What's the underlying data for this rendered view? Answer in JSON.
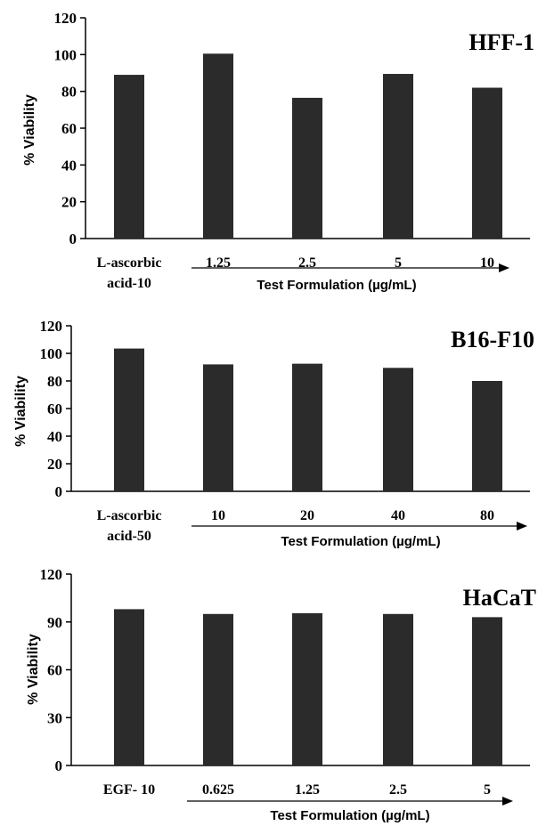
{
  "chart_data": [
    {
      "type": "bar",
      "panel_label": "HFF-1",
      "categories": [
        "L-ascorbic acid-10",
        "1.25",
        "2.5",
        "5",
        "10"
      ],
      "values": [
        89,
        100.5,
        76.5,
        89.5,
        82
      ],
      "ylabel": "% Viability",
      "xlabel": "Test Formulation (µg/mL)",
      "ylim": [
        0,
        120
      ],
      "yticks": [
        0,
        20,
        40,
        60,
        80,
        100,
        120
      ],
      "bar_color": "#2b2b2b",
      "grid": false
    },
    {
      "type": "bar",
      "panel_label": "B16-F10",
      "categories": [
        "L-ascorbic acid-50",
        "10",
        "20",
        "40",
        "80"
      ],
      "values": [
        103.5,
        92,
        92.5,
        89.5,
        80
      ],
      "ylabel": "% Viability",
      "xlabel": "Test Formulation (µg/mL)",
      "ylim": [
        0,
        120
      ],
      "yticks": [
        0,
        20,
        40,
        60,
        80,
        100,
        120
      ],
      "bar_color": "#2b2b2b",
      "grid": false
    },
    {
      "type": "bar",
      "panel_label": "HaCaT",
      "categories": [
        "EGF- 10",
        "0.625",
        "1.25",
        "2.5",
        "5"
      ],
      "values": [
        98,
        95,
        95.5,
        95,
        93
      ],
      "ylabel": "% Viability",
      "xlabel": "Test Formulation (µg/mL)",
      "ylim": [
        0,
        120
      ],
      "yticks": [
        0,
        30,
        60,
        90,
        120
      ],
      "bar_color": "#2b2b2b",
      "grid": false
    }
  ]
}
